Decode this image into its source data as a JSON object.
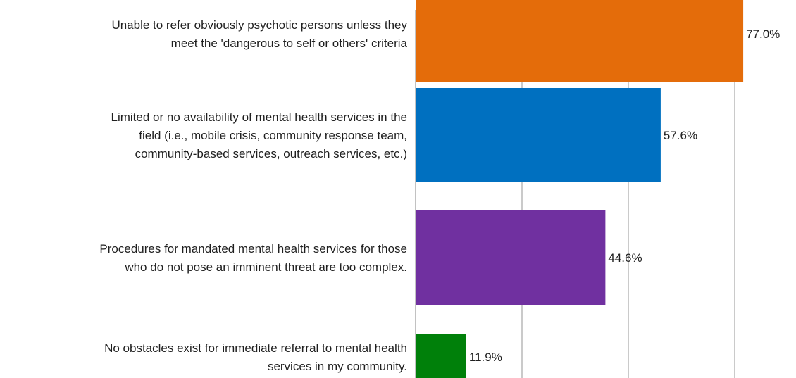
{
  "chart_data": {
    "type": "bar",
    "orientation": "horizontal",
    "categories": [
      [
        "Unable to refer obviously psychotic persons unless they",
        "meet the 'dangerous to self or others' criteria"
      ],
      [
        "Limited or no availability of mental health services in the",
        "field (i.e., mobile crisis, community response team,",
        "community-based services, outreach services, etc.)"
      ],
      [
        "Procedures for mandated mental health services for those",
        "who do not pose an imminent threat are too complex."
      ],
      [
        "No obstacles exist for immediate referral to mental health",
        "services in my community."
      ]
    ],
    "values": [
      77.0,
      57.6,
      44.6,
      11.9
    ],
    "value_labels": [
      "77.0%",
      "57.6%",
      "44.6%",
      "11.9%"
    ],
    "colors": [
      "#E46C0A",
      "#0070C0",
      "#7030A0",
      "#00800A"
    ],
    "xlim": [
      0,
      100
    ],
    "grid": true,
    "gridline_color": "#a6a6a6",
    "legend": "none",
    "title": "",
    "xlabel": "",
    "ylabel": ""
  }
}
